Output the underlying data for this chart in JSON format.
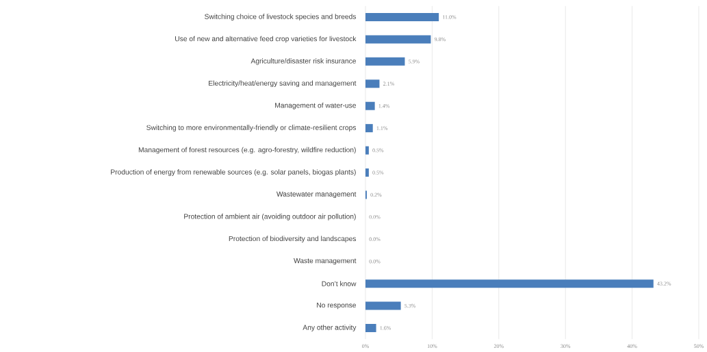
{
  "chart_data": {
    "type": "bar",
    "orientation": "horizontal",
    "categories": [
      "Switching choice of livestock species and breeds",
      "Use of new and alternative feed crop varieties for livestock",
      "Agriculture/disaster risk insurance",
      "Electricity/heat/energy saving and management",
      "Management of water-use",
      "Switching to more environmentally-friendly or climate-resilient crops",
      "Management of forest resources (e.g. agro-forestry, wildfire reduction)",
      "Production of energy from renewable sources (e.g. solar panels, biogas plants)",
      "Wastewater management",
      "Protection of ambient air (avoiding outdoor air pollution)",
      "Protection of biodiversity and landscapes",
      "Waste management",
      "Don’t know",
      "No response",
      "Any other activity"
    ],
    "values": [
      11.0,
      9.8,
      5.9,
      2.1,
      1.4,
      1.1,
      0.5,
      0.5,
      0.2,
      0.0,
      0.0,
      0.0,
      43.2,
      5.3,
      1.6
    ],
    "value_labels": [
      "11.0%",
      "9.8%",
      "5.9%",
      "2.1%",
      "1.4%",
      "1.1%",
      "0.5%",
      "0.5%",
      "0.2%",
      "0.0%",
      "0.0%",
      "0.0%",
      "43.2%",
      "5.3%",
      "1.6%"
    ],
    "color": "#4a7ebb",
    "xlim": [
      0,
      50
    ],
    "xticks": [
      {
        "value": 0,
        "label": "0%"
      },
      {
        "value": 10,
        "label": "10%"
      },
      {
        "value": 20,
        "label": "20%"
      },
      {
        "value": 30,
        "label": "30%"
      },
      {
        "value": 40,
        "label": "40%"
      },
      {
        "value": 50,
        "label": "50%"
      }
    ],
    "grid": "x"
  }
}
